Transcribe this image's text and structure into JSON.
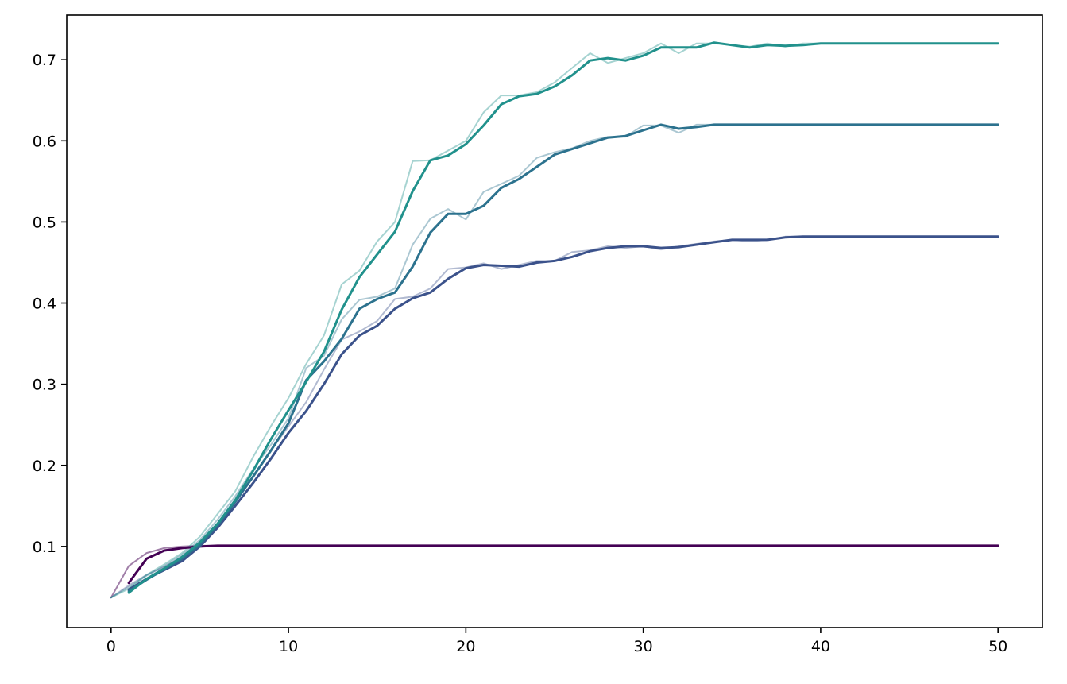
{
  "chart_data": {
    "type": "line",
    "title": "",
    "xlabel": "",
    "ylabel": "",
    "xlim": [
      -2.5,
      52.5
    ],
    "ylim": [
      0.0,
      0.755
    ],
    "xticks": [
      0,
      10,
      20,
      30,
      40,
      50
    ],
    "yticks": [
      0.1,
      0.2,
      0.3,
      0.4,
      0.5,
      0.6,
      0.7
    ],
    "xtick_labels": [
      "0",
      "10",
      "20",
      "30",
      "40",
      "50"
    ],
    "ytick_labels": [
      "0.1",
      "0.2",
      "0.3",
      "0.4",
      "0.5",
      "0.6",
      "0.7"
    ],
    "grid": false,
    "legend": "none",
    "series": [
      {
        "role": "raw",
        "color": "#440154",
        "opacity": 0.5,
        "x": [
          0,
          1,
          2,
          3,
          4,
          5,
          6,
          7,
          8,
          9,
          10,
          11,
          12,
          13,
          14,
          15,
          16,
          17,
          18,
          19,
          20,
          21,
          22,
          23,
          24,
          25,
          26,
          27,
          28,
          29,
          30,
          31,
          32,
          33,
          34,
          35,
          36,
          37,
          38,
          39,
          40,
          41,
          42,
          43,
          44,
          45,
          46,
          47,
          48,
          49,
          50
        ],
        "y": [
          0.037,
          0.076,
          0.092,
          0.098,
          0.1,
          0.101,
          0.101,
          0.101,
          0.101,
          0.101,
          0.101,
          0.101,
          0.101,
          0.101,
          0.101,
          0.101,
          0.101,
          0.101,
          0.101,
          0.101,
          0.101,
          0.101,
          0.101,
          0.101,
          0.101,
          0.101,
          0.101,
          0.101,
          0.101,
          0.101,
          0.101,
          0.101,
          0.101,
          0.101,
          0.101,
          0.101,
          0.101,
          0.101,
          0.101,
          0.101,
          0.101,
          0.101,
          0.101,
          0.101,
          0.101,
          0.101,
          0.101,
          0.101,
          0.101,
          0.101,
          0.101
        ]
      },
      {
        "role": "raw",
        "color": "#3b528b",
        "opacity": 0.4,
        "x": [
          0,
          1,
          2,
          3,
          4,
          5,
          6,
          7,
          8,
          9,
          10,
          11,
          12,
          13,
          14,
          15,
          16,
          17,
          18,
          19,
          20,
          21,
          22,
          23,
          24,
          25,
          26,
          27,
          28,
          29,
          30,
          31,
          32,
          33,
          34,
          35,
          36,
          37,
          38,
          39,
          40,
          41,
          42,
          43,
          44,
          45,
          46,
          47,
          48,
          49,
          50
        ],
        "y": [
          0.037,
          0.052,
          0.065,
          0.075,
          0.087,
          0.105,
          0.128,
          0.157,
          0.185,
          0.218,
          0.248,
          0.278,
          0.318,
          0.355,
          0.365,
          0.378,
          0.405,
          0.408,
          0.418,
          0.442,
          0.444,
          0.449,
          0.442,
          0.447,
          0.452,
          0.452,
          0.463,
          0.465,
          0.47,
          0.468,
          0.47,
          0.466,
          0.47,
          0.473,
          0.476,
          0.478,
          0.476,
          0.478,
          0.482,
          0.482,
          0.482,
          0.482,
          0.482,
          0.482,
          0.482,
          0.482,
          0.482,
          0.482,
          0.482,
          0.482,
          0.482
        ]
      },
      {
        "role": "raw",
        "color": "#2c728e",
        "opacity": 0.4,
        "x": [
          0,
          1,
          2,
          3,
          4,
          5,
          6,
          7,
          8,
          9,
          10,
          11,
          12,
          13,
          14,
          15,
          16,
          17,
          18,
          19,
          20,
          21,
          22,
          23,
          24,
          25,
          26,
          27,
          28,
          29,
          30,
          31,
          32,
          33,
          34,
          35,
          36,
          37,
          38,
          39,
          40,
          41,
          42,
          43,
          44,
          45,
          46,
          47,
          48,
          49,
          50
        ],
        "y": [
          0.037,
          0.05,
          0.064,
          0.076,
          0.09,
          0.108,
          0.133,
          0.162,
          0.195,
          0.225,
          0.258,
          0.32,
          0.335,
          0.38,
          0.404,
          0.408,
          0.418,
          0.472,
          0.504,
          0.516,
          0.503,
          0.537,
          0.547,
          0.557,
          0.579,
          0.586,
          0.591,
          0.6,
          0.605,
          0.605,
          0.619,
          0.619,
          0.61,
          0.62,
          0.62,
          0.62,
          0.62,
          0.62,
          0.62,
          0.62,
          0.62,
          0.62,
          0.62,
          0.62,
          0.62,
          0.62,
          0.62,
          0.62,
          0.62,
          0.62,
          0.62
        ]
      },
      {
        "role": "raw",
        "color": "#21918c",
        "opacity": 0.4,
        "x": [
          0,
          1,
          2,
          3,
          4,
          5,
          6,
          7,
          8,
          9,
          10,
          11,
          12,
          13,
          14,
          15,
          16,
          17,
          18,
          19,
          20,
          21,
          22,
          23,
          24,
          25,
          26,
          27,
          28,
          29,
          30,
          31,
          32,
          33,
          34,
          35,
          36,
          37,
          38,
          39,
          40,
          41,
          42,
          43,
          44,
          45,
          46,
          47,
          48,
          49,
          50
        ],
        "y": [
          0.037,
          0.048,
          0.065,
          0.078,
          0.092,
          0.112,
          0.14,
          0.168,
          0.21,
          0.248,
          0.283,
          0.325,
          0.36,
          0.423,
          0.44,
          0.476,
          0.5,
          0.575,
          0.576,
          0.588,
          0.6,
          0.635,
          0.656,
          0.656,
          0.66,
          0.672,
          0.69,
          0.708,
          0.696,
          0.702,
          0.708,
          0.72,
          0.708,
          0.72,
          0.72,
          0.718,
          0.716,
          0.72,
          0.716,
          0.72,
          0.72,
          0.72,
          0.72,
          0.72,
          0.72,
          0.72,
          0.72,
          0.72,
          0.72,
          0.72,
          0.72
        ]
      },
      {
        "role": "smooth",
        "color": "#440154",
        "opacity": 1,
        "x": [
          1,
          2,
          3,
          4,
          5,
          6,
          7,
          8,
          9,
          10,
          11,
          12,
          13,
          14,
          15,
          16,
          17,
          18,
          19,
          20,
          21,
          22,
          23,
          24,
          25,
          26,
          27,
          28,
          29,
          30,
          31,
          32,
          33,
          34,
          35,
          36,
          37,
          38,
          39,
          40,
          41,
          42,
          43,
          44,
          45,
          46,
          47,
          48,
          49,
          50
        ],
        "y": [
          0.055,
          0.085,
          0.095,
          0.098,
          0.1,
          0.101,
          0.101,
          0.101,
          0.101,
          0.101,
          0.101,
          0.101,
          0.101,
          0.101,
          0.101,
          0.101,
          0.101,
          0.101,
          0.101,
          0.101,
          0.101,
          0.101,
          0.101,
          0.101,
          0.101,
          0.101,
          0.101,
          0.101,
          0.101,
          0.101,
          0.101,
          0.101,
          0.101,
          0.101,
          0.101,
          0.101,
          0.101,
          0.101,
          0.101,
          0.101,
          0.101,
          0.101,
          0.101,
          0.101,
          0.101,
          0.101,
          0.101,
          0.101,
          0.101,
          0.101
        ]
      },
      {
        "role": "smooth",
        "color": "#3b528b",
        "opacity": 1,
        "x": [
          1,
          2,
          3,
          4,
          5,
          6,
          7,
          8,
          9,
          10,
          11,
          12,
          13,
          14,
          15,
          16,
          17,
          18,
          19,
          20,
          21,
          22,
          23,
          24,
          25,
          26,
          27,
          28,
          29,
          30,
          31,
          32,
          33,
          34,
          35,
          36,
          37,
          38,
          39,
          40,
          41,
          42,
          43,
          44,
          45,
          46,
          47,
          48,
          49,
          50
        ],
        "y": [
          0.047,
          0.06,
          0.071,
          0.082,
          0.1,
          0.123,
          0.15,
          0.178,
          0.208,
          0.24,
          0.267,
          0.3,
          0.337,
          0.36,
          0.372,
          0.393,
          0.406,
          0.413,
          0.43,
          0.443,
          0.447,
          0.446,
          0.445,
          0.45,
          0.452,
          0.457,
          0.464,
          0.468,
          0.47,
          0.47,
          0.468,
          0.469,
          0.472,
          0.475,
          0.478,
          0.478,
          0.478,
          0.481,
          0.482,
          0.482,
          0.482,
          0.482,
          0.482,
          0.482,
          0.482,
          0.482,
          0.482,
          0.482,
          0.482,
          0.482
        ]
      },
      {
        "role": "smooth",
        "color": "#2c728e",
        "opacity": 1,
        "x": [
          1,
          2,
          3,
          4,
          5,
          6,
          7,
          8,
          9,
          10,
          11,
          12,
          13,
          14,
          15,
          16,
          17,
          18,
          19,
          20,
          21,
          22,
          23,
          24,
          25,
          26,
          27,
          28,
          29,
          30,
          31,
          32,
          33,
          34,
          35,
          36,
          37,
          38,
          39,
          40,
          41,
          42,
          43,
          44,
          45,
          46,
          47,
          48,
          49,
          50
        ],
        "y": [
          0.045,
          0.059,
          0.072,
          0.085,
          0.102,
          0.126,
          0.155,
          0.186,
          0.218,
          0.252,
          0.305,
          0.328,
          0.356,
          0.393,
          0.405,
          0.413,
          0.445,
          0.487,
          0.51,
          0.51,
          0.52,
          0.542,
          0.553,
          0.568,
          0.583,
          0.59,
          0.597,
          0.604,
          0.606,
          0.613,
          0.62,
          0.615,
          0.617,
          0.62,
          0.62,
          0.62,
          0.62,
          0.62,
          0.62,
          0.62,
          0.62,
          0.62,
          0.62,
          0.62,
          0.62,
          0.62,
          0.62,
          0.62,
          0.62,
          0.62
        ]
      },
      {
        "role": "smooth",
        "color": "#21918c",
        "opacity": 1,
        "x": [
          1,
          2,
          3,
          4,
          5,
          6,
          7,
          8,
          9,
          10,
          11,
          12,
          13,
          14,
          15,
          16,
          17,
          18,
          19,
          20,
          21,
          22,
          23,
          24,
          25,
          26,
          27,
          28,
          29,
          30,
          31,
          32,
          33,
          34,
          35,
          36,
          37,
          38,
          39,
          40,
          41,
          42,
          43,
          44,
          45,
          46,
          47,
          48,
          49,
          50
        ],
        "y": [
          0.043,
          0.06,
          0.073,
          0.087,
          0.105,
          0.128,
          0.157,
          0.193,
          0.232,
          0.268,
          0.303,
          0.34,
          0.392,
          0.432,
          0.46,
          0.488,
          0.538,
          0.576,
          0.582,
          0.596,
          0.619,
          0.645,
          0.655,
          0.658,
          0.667,
          0.681,
          0.699,
          0.702,
          0.699,
          0.705,
          0.715,
          0.715,
          0.715,
          0.721,
          0.718,
          0.715,
          0.718,
          0.717,
          0.718,
          0.72,
          0.72,
          0.72,
          0.72,
          0.72,
          0.72,
          0.72,
          0.72,
          0.72,
          0.72,
          0.72
        ]
      }
    ]
  }
}
